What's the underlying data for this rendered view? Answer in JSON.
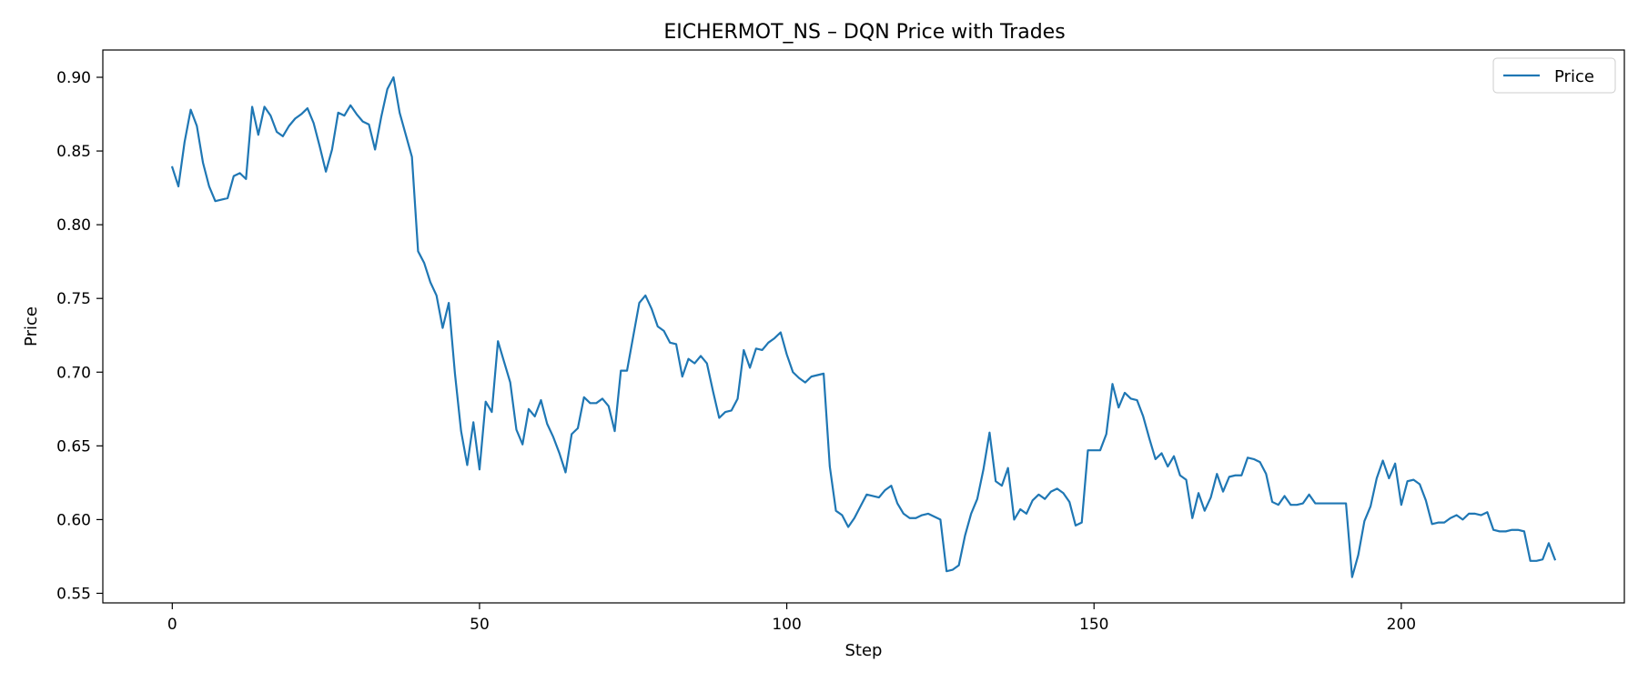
{
  "chart_data": {
    "type": "line",
    "title": "EICHERMOT_NS – DQN Price with Trades",
    "xlabel": "Step",
    "ylabel": "Price",
    "xlim": [
      -11.3,
      236.3
    ],
    "ylim": [
      0.5435,
      0.9185
    ],
    "xticks": [
      0,
      50,
      100,
      150,
      200
    ],
    "yticks": [
      0.55,
      0.6,
      0.65,
      0.7,
      0.75,
      0.8,
      0.85,
      0.9
    ],
    "ytick_labels": [
      "0.55",
      "0.60",
      "0.65",
      "0.70",
      "0.75",
      "0.80",
      "0.85",
      "0.90"
    ],
    "grid": false,
    "legend": {
      "position": "top-right",
      "entries": [
        "Price"
      ]
    },
    "series": [
      {
        "name": "Price",
        "color": "#1f77b4",
        "x_start": 0,
        "values": [
          0.839,
          0.826,
          0.856,
          0.878,
          0.867,
          0.842,
          0.826,
          0.816,
          0.817,
          0.818,
          0.833,
          0.835,
          0.831,
          0.88,
          0.861,
          0.88,
          0.874,
          0.863,
          0.86,
          0.867,
          0.872,
          0.875,
          0.879,
          0.869,
          0.853,
          0.836,
          0.851,
          0.876,
          0.874,
          0.881,
          0.875,
          0.87,
          0.868,
          0.851,
          0.873,
          0.892,
          0.9,
          0.876,
          0.861,
          0.846,
          0.782,
          0.774,
          0.761,
          0.752,
          0.73,
          0.747,
          0.699,
          0.66,
          0.637,
          0.666,
          0.634,
          0.68,
          0.673,
          0.721,
          0.707,
          0.693,
          0.661,
          0.651,
          0.675,
          0.67,
          0.681,
          0.665,
          0.656,
          0.645,
          0.632,
          0.658,
          0.662,
          0.683,
          0.679,
          0.679,
          0.682,
          0.677,
          0.66,
          0.701,
          0.701,
          0.724,
          0.747,
          0.752,
          0.743,
          0.731,
          0.728,
          0.72,
          0.719,
          0.697,
          0.709,
          0.706,
          0.711,
          0.706,
          0.687,
          0.669,
          0.673,
          0.674,
          0.682,
          0.715,
          0.703,
          0.716,
          0.715,
          0.72,
          0.723,
          0.727,
          0.712,
          0.7,
          0.696,
          0.693,
          0.697,
          0.698,
          0.699,
          0.636,
          0.606,
          0.603,
          0.595,
          0.601,
          0.609,
          0.617,
          0.616,
          0.615,
          0.62,
          0.623,
          0.611,
          0.604,
          0.601,
          0.601,
          0.603,
          0.604,
          0.602,
          0.6,
          0.565,
          0.566,
          0.569,
          0.589,
          0.604,
          0.614,
          0.634,
          0.659,
          0.626,
          0.623,
          0.635,
          0.6,
          0.607,
          0.604,
          0.613,
          0.617,
          0.614,
          0.619,
          0.621,
          0.618,
          0.612,
          0.596,
          0.598,
          0.647,
          0.647,
          0.647,
          0.658,
          0.692,
          0.676,
          0.686,
          0.682,
          0.681,
          0.67,
          0.655,
          0.641,
          0.645,
          0.636,
          0.643,
          0.63,
          0.627,
          0.601,
          0.618,
          0.606,
          0.615,
          0.631,
          0.619,
          0.629,
          0.63,
          0.63,
          0.642,
          0.641,
          0.639,
          0.631,
          0.612,
          0.61,
          0.616,
          0.61,
          0.61,
          0.611,
          0.617,
          0.611,
          0.611,
          0.611,
          0.611,
          0.611,
          0.611,
          0.561,
          0.576,
          0.599,
          0.609,
          0.628,
          0.64,
          0.628,
          0.638,
          0.61,
          0.626,
          0.627,
          0.624,
          0.613,
          0.597,
          0.598,
          0.598,
          0.601,
          0.603,
          0.6,
          0.604,
          0.604,
          0.603,
          0.605,
          0.593,
          0.592,
          0.592,
          0.593,
          0.593,
          0.592,
          0.572,
          0.572,
          0.573,
          0.584,
          0.573
        ]
      }
    ]
  }
}
